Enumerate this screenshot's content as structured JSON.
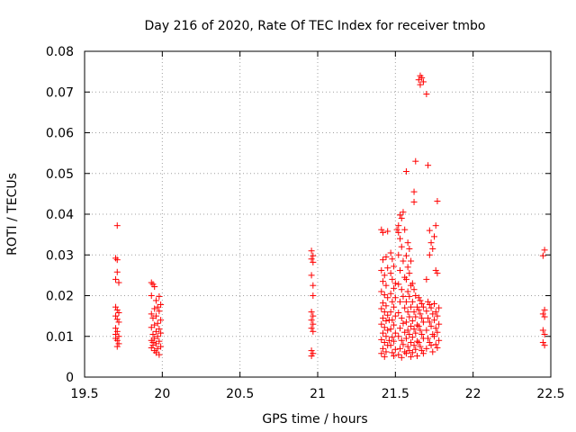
{
  "chart_data": {
    "type": "scatter",
    "title": "Day 216 of 2020, Rate Of TEC Index for receiver tmbo",
    "xlabel": "GPS time / hours",
    "ylabel": "ROTI / TECUs",
    "xlim": [
      19.5,
      22.5
    ],
    "ylim": [
      0,
      0.08
    ],
    "x_ticks": [
      19.5,
      20,
      20.5,
      21,
      21.5,
      22,
      22.5
    ],
    "x_tick_labels": [
      "19.5",
      "20",
      "20.5",
      "21",
      "21.5",
      "22",
      "22.5"
    ],
    "y_ticks": [
      0,
      0.01,
      0.02,
      0.03,
      0.04,
      0.05,
      0.06,
      0.07,
      0.08
    ],
    "y_tick_labels": [
      "0",
      "0.01",
      "0.02",
      "0.03",
      "0.04",
      "0.05",
      "0.06",
      "0.07",
      "0.08"
    ],
    "grid": true,
    "marker": "+",
    "color": "#ff0000",
    "series": [
      {
        "name": "ROTI",
        "points": [
          [
            19.71,
            0.0372
          ],
          [
            19.7,
            0.0292
          ],
          [
            19.71,
            0.0288
          ],
          [
            19.71,
            0.0258
          ],
          [
            19.7,
            0.024
          ],
          [
            19.72,
            0.0232
          ],
          [
            19.7,
            0.0172
          ],
          [
            19.71,
            0.0165
          ],
          [
            19.72,
            0.0158
          ],
          [
            19.7,
            0.015
          ],
          [
            19.71,
            0.0142
          ],
          [
            19.72,
            0.0135
          ],
          [
            19.7,
            0.012
          ],
          [
            19.71,
            0.0112
          ],
          [
            19.72,
            0.01
          ],
          [
            19.7,
            0.0095
          ],
          [
            19.71,
            0.009
          ],
          [
            19.72,
            0.0082
          ],
          [
            19.71,
            0.0075
          ],
          [
            19.7,
            0.0105
          ],
          [
            19.93,
            0.0232
          ],
          [
            19.94,
            0.0228
          ],
          [
            19.95,
            0.0222
          ],
          [
            19.93,
            0.02
          ],
          [
            19.98,
            0.0198
          ],
          [
            19.96,
            0.0188
          ],
          [
            19.99,
            0.0178
          ],
          [
            19.97,
            0.0172
          ],
          [
            19.95,
            0.0168
          ],
          [
            19.98,
            0.0162
          ],
          [
            19.93,
            0.0155
          ],
          [
            19.96,
            0.015
          ],
          [
            19.94,
            0.0145
          ],
          [
            19.99,
            0.014
          ],
          [
            19.97,
            0.0132
          ],
          [
            19.95,
            0.0128
          ],
          [
            19.93,
            0.0122
          ],
          [
            19.98,
            0.0118
          ],
          [
            19.96,
            0.0112
          ],
          [
            19.99,
            0.0108
          ],
          [
            19.94,
            0.0105
          ],
          [
            19.97,
            0.01
          ],
          [
            19.95,
            0.0095
          ],
          [
            19.93,
            0.009
          ],
          [
            19.98,
            0.0088
          ],
          [
            19.96,
            0.0082
          ],
          [
            19.94,
            0.0078
          ],
          [
            19.99,
            0.0075
          ],
          [
            19.97,
            0.007
          ],
          [
            19.95,
            0.0065
          ],
          [
            19.93,
            0.0072
          ],
          [
            19.98,
            0.0055
          ],
          [
            19.96,
            0.006
          ],
          [
            19.94,
            0.0085
          ],
          [
            20.96,
            0.031
          ],
          [
            20.97,
            0.0298
          ],
          [
            20.96,
            0.029
          ],
          [
            20.97,
            0.0282
          ],
          [
            20.96,
            0.025
          ],
          [
            20.97,
            0.0225
          ],
          [
            20.97,
            0.02
          ],
          [
            20.96,
            0.016
          ],
          [
            20.97,
            0.015
          ],
          [
            20.96,
            0.014
          ],
          [
            20.97,
            0.013
          ],
          [
            20.96,
            0.012
          ],
          [
            20.97,
            0.0112
          ],
          [
            20.96,
            0.0065
          ],
          [
            20.97,
            0.0058
          ],
          [
            20.96,
            0.0052
          ],
          [
            21.41,
            0.0362
          ],
          [
            21.42,
            0.0355
          ],
          [
            21.45,
            0.0358
          ],
          [
            21.44,
            0.0295
          ],
          [
            21.42,
            0.0288
          ],
          [
            21.41,
            0.0262
          ],
          [
            21.43,
            0.025
          ],
          [
            21.45,
            0.0268
          ],
          [
            21.42,
            0.0235
          ],
          [
            21.44,
            0.0225
          ],
          [
            21.41,
            0.021
          ],
          [
            21.43,
            0.0202
          ],
          [
            21.45,
            0.0195
          ],
          [
            21.42,
            0.0182
          ],
          [
            21.44,
            0.0175
          ],
          [
            21.41,
            0.0168
          ],
          [
            21.43,
            0.016
          ],
          [
            21.45,
            0.0152
          ],
          [
            21.42,
            0.0145
          ],
          [
            21.44,
            0.0138
          ],
          [
            21.41,
            0.013
          ],
          [
            21.43,
            0.0122
          ],
          [
            21.45,
            0.0115
          ],
          [
            21.42,
            0.0108
          ],
          [
            21.44,
            0.01
          ],
          [
            21.41,
            0.0092
          ],
          [
            21.43,
            0.0085
          ],
          [
            21.45,
            0.0078
          ],
          [
            21.42,
            0.007
          ],
          [
            21.44,
            0.0062
          ],
          [
            21.41,
            0.0058
          ],
          [
            21.43,
            0.005
          ],
          [
            21.46,
            0.014
          ],
          [
            21.46,
            0.009
          ],
          [
            21.47,
            0.0305
          ],
          [
            21.48,
            0.029
          ],
          [
            21.49,
            0.0272
          ],
          [
            21.47,
            0.0255
          ],
          [
            21.48,
            0.024
          ],
          [
            21.5,
            0.023
          ],
          [
            21.49,
            0.0218
          ],
          [
            21.47,
            0.0205
          ],
          [
            21.5,
            0.0195
          ],
          [
            21.48,
            0.0185
          ],
          [
            21.49,
            0.0172
          ],
          [
            21.47,
            0.016
          ],
          [
            21.5,
            0.015
          ],
          [
            21.48,
            0.014
          ],
          [
            21.49,
            0.0128
          ],
          [
            21.47,
            0.0118
          ],
          [
            21.5,
            0.0108
          ],
          [
            21.48,
            0.0098
          ],
          [
            21.49,
            0.0088
          ],
          [
            21.47,
            0.0078
          ],
          [
            21.5,
            0.0068
          ],
          [
            21.48,
            0.006
          ],
          [
            21.49,
            0.0052
          ],
          [
            21.51,
            0.0362
          ],
          [
            21.52,
            0.0355
          ],
          [
            21.52,
            0.0372
          ],
          [
            21.54,
            0.039
          ],
          [
            21.55,
            0.0405
          ],
          [
            21.53,
            0.0398
          ],
          [
            21.56,
            0.0362
          ],
          [
            21.53,
            0.034
          ],
          [
            21.54,
            0.032
          ],
          [
            21.52,
            0.03
          ],
          [
            21.55,
            0.0285
          ],
          [
            21.53,
            0.0262
          ],
          [
            21.56,
            0.0245
          ],
          [
            21.52,
            0.0228
          ],
          [
            21.54,
            0.0215
          ],
          [
            21.55,
            0.0198
          ],
          [
            21.53,
            0.0185
          ],
          [
            21.56,
            0.017
          ],
          [
            21.52,
            0.0158
          ],
          [
            21.54,
            0.0145
          ],
          [
            21.55,
            0.0132
          ],
          [
            21.53,
            0.012
          ],
          [
            21.56,
            0.011
          ],
          [
            21.52,
            0.01
          ],
          [
            21.54,
            0.009
          ],
          [
            21.55,
            0.008
          ],
          [
            21.53,
            0.007
          ],
          [
            21.56,
            0.0062
          ],
          [
            21.52,
            0.0055
          ],
          [
            21.54,
            0.0048
          ],
          [
            21.57,
            0.0505
          ],
          [
            21.58,
            0.033
          ],
          [
            21.59,
            0.0315
          ],
          [
            21.57,
            0.0298
          ],
          [
            21.6,
            0.0285
          ],
          [
            21.58,
            0.027
          ],
          [
            21.59,
            0.0255
          ],
          [
            21.57,
            0.024
          ],
          [
            21.6,
            0.0225
          ],
          [
            21.58,
            0.021
          ],
          [
            21.59,
            0.0198
          ],
          [
            21.57,
            0.0185
          ],
          [
            21.6,
            0.0172
          ],
          [
            21.58,
            0.016
          ],
          [
            21.59,
            0.0148
          ],
          [
            21.57,
            0.0135
          ],
          [
            21.6,
            0.0125
          ],
          [
            21.58,
            0.0115
          ],
          [
            21.59,
            0.0105
          ],
          [
            21.57,
            0.0095
          ],
          [
            21.6,
            0.0085
          ],
          [
            21.58,
            0.0075
          ],
          [
            21.59,
            0.0065
          ],
          [
            21.57,
            0.0058
          ],
          [
            21.6,
            0.005
          ],
          [
            21.63,
            0.053
          ],
          [
            21.62,
            0.0455
          ],
          [
            21.62,
            0.043
          ],
          [
            21.61,
            0.023
          ],
          [
            21.62,
            0.0215
          ],
          [
            21.63,
            0.02
          ],
          [
            21.61,
            0.0185
          ],
          [
            21.64,
            0.0172
          ],
          [
            21.62,
            0.016
          ],
          [
            21.63,
            0.0148
          ],
          [
            21.61,
            0.0138
          ],
          [
            21.64,
            0.0128
          ],
          [
            21.62,
            0.0118
          ],
          [
            21.63,
            0.0108
          ],
          [
            21.61,
            0.0098
          ],
          [
            21.64,
            0.0088
          ],
          [
            21.62,
            0.0078
          ],
          [
            21.63,
            0.0068
          ],
          [
            21.61,
            0.006
          ],
          [
            21.64,
            0.0052
          ],
          [
            21.65,
            0.073
          ],
          [
            21.66,
            0.074
          ],
          [
            21.67,
            0.0735
          ],
          [
            21.68,
            0.0725
          ],
          [
            21.66,
            0.0718
          ],
          [
            21.65,
            0.0195
          ],
          [
            21.66,
            0.0188
          ],
          [
            21.67,
            0.018
          ],
          [
            21.68,
            0.0172
          ],
          [
            21.65,
            0.0165
          ],
          [
            21.66,
            0.0155
          ],
          [
            21.67,
            0.0145
          ],
          [
            21.68,
            0.0135
          ],
          [
            21.65,
            0.0125
          ],
          [
            21.66,
            0.0115
          ],
          [
            21.67,
            0.0105
          ],
          [
            21.68,
            0.0095
          ],
          [
            21.65,
            0.0085
          ],
          [
            21.66,
            0.0075
          ],
          [
            21.67,
            0.0065
          ],
          [
            21.68,
            0.0058
          ],
          [
            21.7,
            0.0695
          ],
          [
            21.71,
            0.052
          ],
          [
            21.72,
            0.036
          ],
          [
            21.73,
            0.033
          ],
          [
            21.74,
            0.0315
          ],
          [
            21.72,
            0.03
          ],
          [
            21.7,
            0.024
          ],
          [
            21.71,
            0.0185
          ],
          [
            21.72,
            0.0178
          ],
          [
            21.73,
            0.017
          ],
          [
            21.7,
            0.0162
          ],
          [
            21.74,
            0.0155
          ],
          [
            21.71,
            0.0145
          ],
          [
            21.72,
            0.0135
          ],
          [
            21.73,
            0.0125
          ],
          [
            21.7,
            0.0115
          ],
          [
            21.74,
            0.0105
          ],
          [
            21.71,
            0.0095
          ],
          [
            21.72,
            0.0085
          ],
          [
            21.73,
            0.0078
          ],
          [
            21.7,
            0.007
          ],
          [
            21.74,
            0.0062
          ],
          [
            21.77,
            0.0432
          ],
          [
            21.76,
            0.0372
          ],
          [
            21.75,
            0.0345
          ],
          [
            21.76,
            0.0262
          ],
          [
            21.77,
            0.0255
          ],
          [
            21.75,
            0.018
          ],
          [
            21.78,
            0.017
          ],
          [
            21.76,
            0.016
          ],
          [
            21.77,
            0.015
          ],
          [
            21.75,
            0.014
          ],
          [
            21.78,
            0.013
          ],
          [
            21.76,
            0.012
          ],
          [
            21.77,
            0.011
          ],
          [
            21.75,
            0.01
          ],
          [
            21.78,
            0.009
          ],
          [
            21.76,
            0.008
          ],
          [
            21.77,
            0.0072
          ],
          [
            22.46,
            0.0312
          ],
          [
            22.45,
            0.0298
          ],
          [
            22.46,
            0.0165
          ],
          [
            22.45,
            0.0155
          ],
          [
            22.46,
            0.0148
          ],
          [
            22.45,
            0.0115
          ],
          [
            22.46,
            0.0105
          ],
          [
            22.45,
            0.0085
          ],
          [
            22.46,
            0.0078
          ]
        ]
      }
    ]
  }
}
